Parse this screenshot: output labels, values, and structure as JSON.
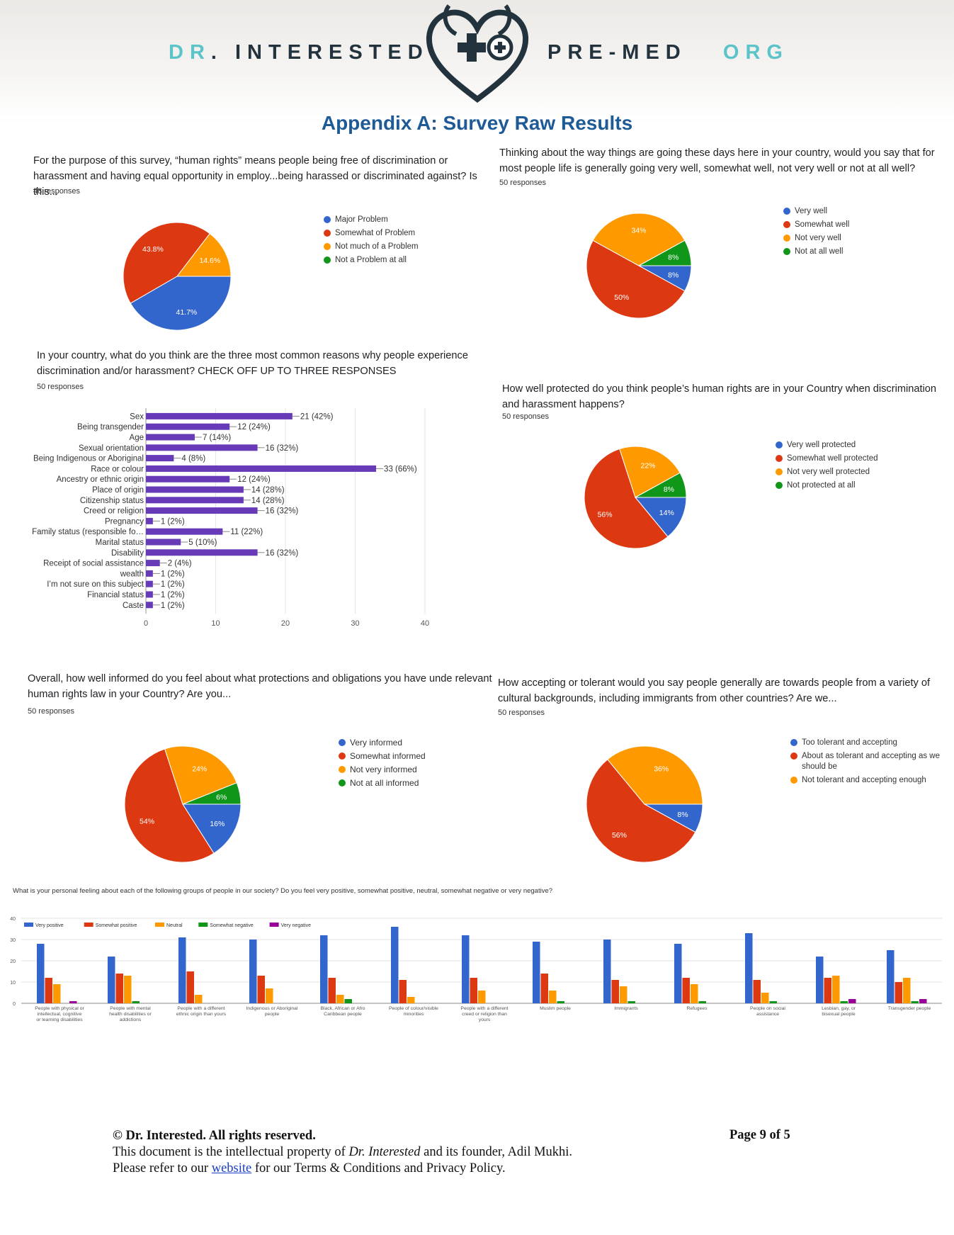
{
  "header": {
    "brand_left_a": "DR",
    "brand_left_b": ". INTERESTED",
    "brand_right_a": "PRE-MED",
    "brand_right_b": "ORG",
    "appendix_title": "Appendix A: Survey Raw Results"
  },
  "q1": {
    "question": "For the purpose of this survey, “human rights” means people being free of discrimination or harassment and having equal opportunity in employ...being harassed or discriminated against? Is this...",
    "responses": "48 responses"
  },
  "q2": {
    "question": "Thinking about the way things are going these days here in your country, would you say that for most people life is generally going very well, somewhat well, not very well or not at all well?",
    "responses": "50 responses"
  },
  "q3": {
    "question": "In your country, what do you think are the three most common reasons why people experience discrimination and/or harassment? CHECK OFF UP TO THREE RESPONSES",
    "responses": "50 responses"
  },
  "q4": {
    "question": "How well protected do you think people’s human rights are in your Country when discrimination and harassment happens?",
    "responses": "50 responses"
  },
  "q5": {
    "question": "Overall, how well informed do you feel about what protections and obligations you have unde relevant human rights law in your Country? Are you...",
    "responses": "50 responses"
  },
  "q6": {
    "question": "How accepting or tolerant would you say people generally are towards people from a variety of cultural backgrounds, including immigrants from other countries? Are we...",
    "responses": "50 responses"
  },
  "q7": {
    "question": "What is your personal feeling about each of the following groups of people in our society? Do you feel very positive, somewhat positive, neutral, somewhat negative or very negative?"
  },
  "chart_data": [
    {
      "type": "pie",
      "slices": [
        {
          "label": "Major Problem",
          "value": 41.7,
          "display": "41.7%",
          "color": "#3366cc"
        },
        {
          "label": "Somewhat of Problem",
          "value": 43.8,
          "display": "43.8%",
          "color": "#dc3912"
        },
        {
          "label": "Not much of a Problem",
          "value": 14.6,
          "display": "14.6%",
          "color": "#ff9900"
        },
        {
          "label": "Not a Problem at all",
          "value": 0,
          "display": "",
          "color": "#109618"
        }
      ]
    },
    {
      "type": "pie",
      "slices": [
        {
          "label": "Very well",
          "value": 8,
          "display": "8%",
          "color": "#3366cc"
        },
        {
          "label": "Somewhat well",
          "value": 50,
          "display": "50%",
          "color": "#dc3912"
        },
        {
          "label": "Not very well",
          "value": 34,
          "display": "34%",
          "color": "#ff9900"
        },
        {
          "label": "Not at all well",
          "value": 8,
          "display": "8%",
          "color": "#109618"
        }
      ]
    },
    {
      "type": "bar",
      "orientation": "horizontal",
      "color": "#673ab7",
      "categories": [
        "Sex",
        "Being transgender",
        "Age",
        "Sexual orientation",
        "Being Indigenous or Aboriginal",
        "Race or colour",
        "Ancestry or ethnic origin",
        "Place of origin",
        "Citizenship status",
        "Creed or religion",
        "Pregnancy",
        "Family status (responsible fo…",
        "Marital status",
        "Disability",
        "Receipt of social assistance",
        "wealth",
        "I’m not sure on this subject",
        "Financial status",
        "Caste"
      ],
      "values": [
        21,
        12,
        7,
        16,
        4,
        33,
        12,
        14,
        14,
        16,
        1,
        11,
        5,
        16,
        2,
        1,
        1,
        1,
        1
      ],
      "labels": [
        "21 (42%)",
        "12 (24%)",
        "7 (14%)",
        "16 (32%)",
        "4 (8%)",
        "33 (66%)",
        "12 (24%)",
        "14 (28%)",
        "14 (28%)",
        "16 (32%)",
        "1 (2%)",
        "11 (22%)",
        "5 (10%)",
        "16 (32%)",
        "2 (4%)",
        "1 (2%)",
        "1 (2%)",
        "1 (2%)",
        "1 (2%)"
      ],
      "xlim": [
        0,
        40
      ],
      "xticks": [
        "0",
        "10",
        "20",
        "30",
        "40"
      ]
    },
    {
      "type": "pie",
      "slices": [
        {
          "label": "Very well protected",
          "value": 14,
          "display": "14%",
          "color": "#3366cc"
        },
        {
          "label": "Somewhat well protected",
          "value": 56,
          "display": "56%",
          "color": "#dc3912"
        },
        {
          "label": "Not very well protected",
          "value": 22,
          "display": "22%",
          "color": "#ff9900"
        },
        {
          "label": "Not protected at all",
          "value": 8,
          "display": "8%",
          "color": "#109618"
        }
      ]
    },
    {
      "type": "pie",
      "slices": [
        {
          "label": "Very informed",
          "value": 16,
          "display": "16%",
          "color": "#3366cc"
        },
        {
          "label": "Somewhat informed",
          "value": 54,
          "display": "54%",
          "color": "#dc3912"
        },
        {
          "label": "Not very informed",
          "value": 24,
          "display": "24%",
          "color": "#ff9900"
        },
        {
          "label": "Not at all informed",
          "value": 6,
          "display": "6%",
          "color": "#109618"
        }
      ]
    },
    {
      "type": "pie",
      "slices": [
        {
          "label": "Too tolerant and accepting",
          "value": 8,
          "display": "8%",
          "color": "#3366cc"
        },
        {
          "label": "About as tolerant and accepting as we should be",
          "value": 56,
          "display": "56%",
          "color": "#dc3912"
        },
        {
          "label": "Not tolerant and accepting enough",
          "value": 36,
          "display": "36%",
          "color": "#ff9900"
        }
      ]
    },
    {
      "type": "bar",
      "orientation": "vertical",
      "ylim": [
        0,
        40
      ],
      "yticks": [
        "0",
        "10",
        "20",
        "30",
        "40"
      ],
      "categories": [
        "People with physical or intellectual, cognitive or learning disabilities",
        "People with mental health disabilities or addictions",
        "People with a different ethnic origin than yours",
        "Indigenous or Aboriginal people",
        "Black, African or Afro Caribbean people",
        "People of colour/visible minorities",
        "People with a different creed or religion than yours",
        "Muslim people",
        "Immigrants",
        "Refugees",
        "People on social assistance",
        "Lesbian, gay, or bisexual people",
        "Transgender people"
      ],
      "series": [
        {
          "name": "Very positive",
          "color": "#3366cc",
          "values": [
            28,
            22,
            31,
            30,
            32,
            36,
            32,
            29,
            30,
            28,
            33,
            22,
            25
          ]
        },
        {
          "name": "Somewhat positive",
          "color": "#dc3912",
          "values": [
            12,
            14,
            15,
            13,
            12,
            11,
            12,
            14,
            11,
            12,
            11,
            12,
            10
          ]
        },
        {
          "name": "Neutral",
          "color": "#ff9900",
          "values": [
            9,
            13,
            4,
            7,
            4,
            3,
            6,
            6,
            8,
            9,
            5,
            13,
            12
          ]
        },
        {
          "name": "Somewhat negative",
          "color": "#109618",
          "values": [
            0,
            1,
            0,
            0,
            2,
            0,
            0,
            1,
            1,
            1,
            1,
            1,
            1
          ]
        },
        {
          "name": "Very negative",
          "color": "#990099",
          "values": [
            1,
            0,
            0,
            0,
            0,
            0,
            0,
            0,
            0,
            0,
            0,
            2,
            2
          ]
        }
      ]
    }
  ],
  "footer": {
    "copyright": "© Dr. Interested. All rights reserved.",
    "line2_a": "This document is the intellectual property of ",
    "line2_em": "Dr. Interested",
    "line2_b": " and its founder, Adil Mukhi.",
    "line3_a": "Please refer to our ",
    "line3_link": "website",
    "line3_b": " for our Terms & Conditions and Privacy Policy.",
    "page": "Page 9 of 5"
  }
}
